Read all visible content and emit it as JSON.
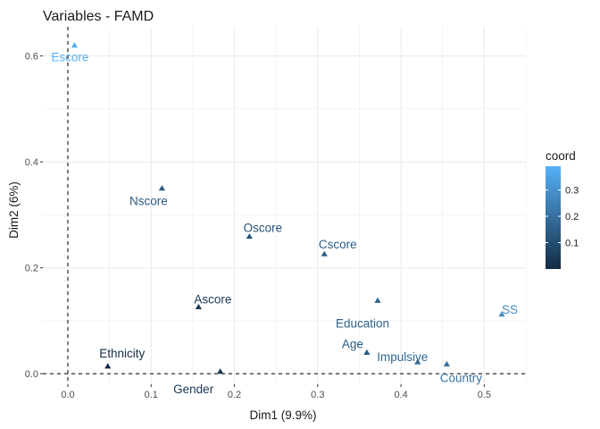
{
  "chart_data": {
    "type": "scatter",
    "title": "Variables - FAMD",
    "xlabel": "Dim1 (9.9%)",
    "ylabel": "Dim2 (6%)",
    "xlim": [
      -0.03,
      0.55
    ],
    "ylim": [
      -0.02,
      0.655
    ],
    "xticks": [
      0.0,
      0.1,
      0.2,
      0.3,
      0.4,
      0.5
    ],
    "xtick_labels": [
      "0.0",
      "0.1",
      "0.2",
      "0.3",
      "0.4",
      "0.5"
    ],
    "yticks": [
      0.0,
      0.2,
      0.4,
      0.6
    ],
    "ytick_labels": [
      "0.0",
      "0.2",
      "0.4",
      "0.6"
    ],
    "grid": true,
    "reference_lines": {
      "x": 0,
      "y": 0,
      "style": "dashed"
    },
    "legend": {
      "title": "coord",
      "placement": "right",
      "range": [
        0.0,
        0.39
      ],
      "ticks": [
        0.1,
        0.2,
        0.3
      ],
      "tick_labels": [
        "0.1",
        "0.2",
        "0.3"
      ],
      "low_color": "#132B43",
      "high_color": "#56B1F7"
    },
    "points": [
      {
        "name": "Escore",
        "x": 0.008,
        "y": 0.62,
        "coord": 0.384
      },
      {
        "name": "Nscore",
        "x": 0.113,
        "y": 0.35,
        "coord": 0.135
      },
      {
        "name": "Oscore",
        "x": 0.218,
        "y": 0.259,
        "coord": 0.115
      },
      {
        "name": "Cscore",
        "x": 0.308,
        "y": 0.226,
        "coord": 0.146
      },
      {
        "name": "Ascore",
        "x": 0.157,
        "y": 0.126,
        "coord": 0.04
      },
      {
        "name": "Education",
        "x": 0.372,
        "y": 0.138,
        "coord": 0.157
      },
      {
        "name": "SS",
        "x": 0.521,
        "y": 0.112,
        "coord": 0.284
      },
      {
        "name": "Ethnicity",
        "x": 0.048,
        "y": 0.014,
        "coord": 0.002
      },
      {
        "name": "Gender",
        "x": 0.183,
        "y": 0.004,
        "coord": 0.034
      },
      {
        "name": "Age",
        "x": 0.359,
        "y": 0.04,
        "coord": 0.13
      },
      {
        "name": "Impulsive",
        "x": 0.42,
        "y": 0.022,
        "coord": 0.177
      },
      {
        "name": "Country",
        "x": 0.455,
        "y": 0.018,
        "coord": 0.207
      }
    ]
  }
}
